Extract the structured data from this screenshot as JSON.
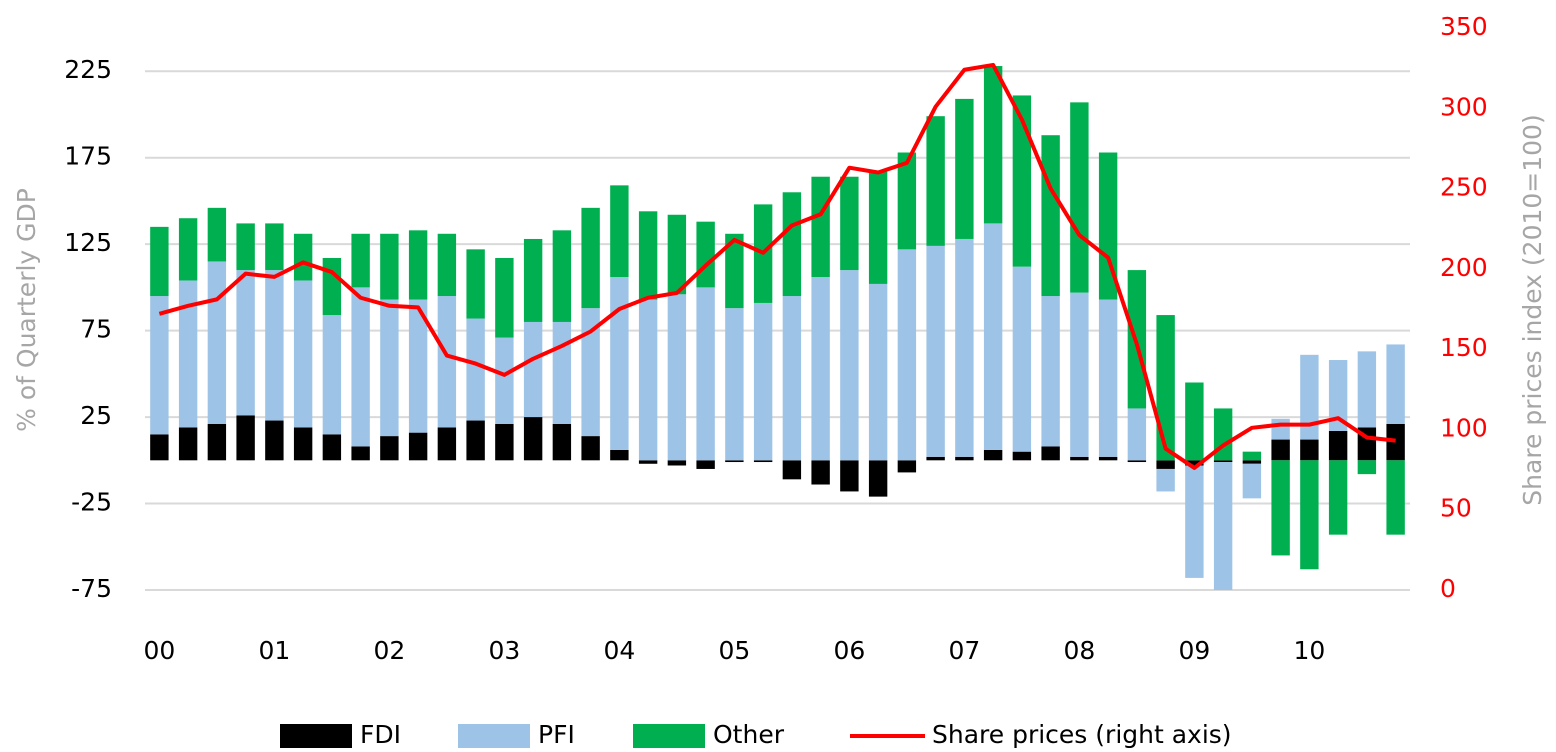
{
  "chart_data": {
    "type": "bar",
    "stacked": true,
    "categories": [
      "00",
      null,
      null,
      null,
      "01",
      null,
      null,
      null,
      "02",
      null,
      null,
      null,
      "03",
      null,
      null,
      null,
      "04",
      null,
      null,
      null,
      "05",
      null,
      null,
      null,
      "06",
      null,
      null,
      null,
      "07",
      null,
      null,
      null,
      "08",
      null,
      null,
      null,
      "09",
      null,
      null,
      null,
      "10",
      null,
      null,
      null
    ],
    "series": [
      {
        "name": "FDI",
        "color": "#000000",
        "values": [
          15,
          19,
          21,
          26,
          23,
          19,
          15,
          8,
          14,
          16,
          19,
          23,
          21,
          25,
          21,
          14,
          6,
          -2,
          -3,
          -5,
          -1,
          -1,
          -11,
          -14,
          -18,
          -21,
          -7,
          2,
          2,
          6,
          5,
          8,
          2,
          2,
          -1,
          -5,
          -3,
          -1,
          -2,
          12,
          12,
          17,
          19,
          21
        ]
      },
      {
        "name": "PFI",
        "color": "#9dc3e6",
        "values": [
          80,
          85,
          94,
          84,
          87,
          85,
          69,
          92,
          79,
          77,
          76,
          59,
          50,
          55,
          59,
          74,
          100,
          93,
          96,
          100,
          88,
          91,
          95,
          106,
          110,
          102,
          122,
          122,
          126,
          131,
          107,
          87,
          95,
          91,
          30,
          -13,
          -65,
          -74,
          -20,
          12,
          49,
          41,
          44,
          46
        ]
      },
      {
        "name": "Other",
        "color": "#00b050",
        "values": [
          40,
          36,
          31,
          27,
          27,
          27,
          33,
          31,
          38,
          40,
          36,
          40,
          46,
          48,
          53,
          58,
          53,
          51,
          46,
          38,
          43,
          57,
          60,
          58,
          54,
          65,
          56,
          75,
          81,
          91,
          99,
          93,
          110,
          85,
          80,
          84,
          45,
          30,
          5,
          -55,
          -63,
          -43,
          -8,
          -43
        ]
      },
      {
        "name": "Share prices (right axis)",
        "color": "#ff0000",
        "type": "line",
        "axis": "y2",
        "values": [
          172,
          177,
          181,
          197,
          195,
          204,
          198,
          182,
          177,
          176,
          146,
          141,
          134,
          144,
          152,
          161,
          175,
          182,
          185,
          202,
          218,
          210,
          227,
          234,
          263,
          260,
          266,
          301,
          324,
          327,
          293,
          250,
          221,
          207,
          153,
          88,
          76,
          90,
          101,
          103,
          103,
          107,
          95,
          93
        ]
      }
    ],
    "ylabel": "% of Quarterly GDP",
    "y2label": "Share prices index (2010=100)",
    "ylim": [
      -75,
      250
    ],
    "yticks": [
      -75,
      -25,
      25,
      75,
      125,
      175,
      225
    ],
    "y2lim": [
      0,
      350
    ],
    "y2ticks": [
      0,
      50,
      100,
      150,
      200,
      250,
      300,
      350
    ],
    "grid": true,
    "legend": "bottom"
  }
}
